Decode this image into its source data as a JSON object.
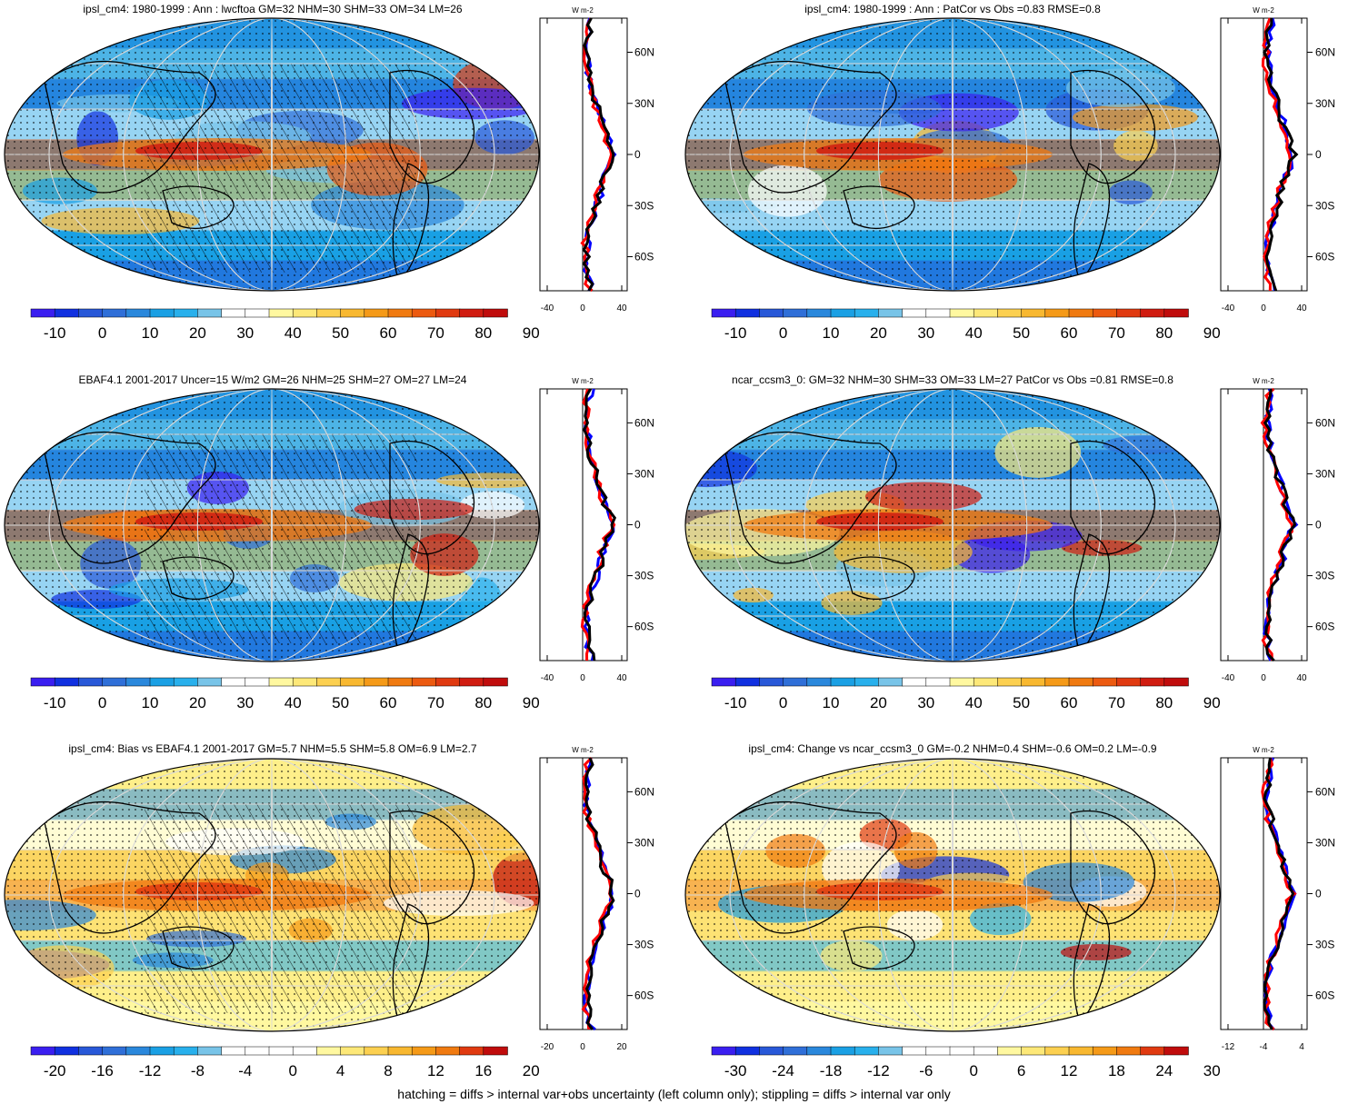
{
  "panels": [
    {
      "title": "ipsl_cm4: 1980-1999 : Ann : lwcftoa GM=32 NHM=30 SHM=33 OM=34 LM=26",
      "hatched": true,
      "colorbar": {
        "labels": [
          "-10",
          "0",
          "10",
          "20",
          "30",
          "40",
          "50",
          "60",
          "70",
          "80",
          "90"
        ],
        "palette": "sequential"
      },
      "profile": {
        "xticks": [
          "-40",
          "0",
          "40"
        ],
        "lat_labels": [
          "60N",
          "30N",
          "0",
          "30S",
          "60S"
        ],
        "unit": "W m-2"
      }
    },
    {
      "title": "ipsl_cm4: 1980-1999 : Ann : PatCor vs Obs =0.83 RMSE=0.8",
      "hatched": false,
      "colorbar": {
        "labels": [
          "-10",
          "0",
          "10",
          "20",
          "30",
          "40",
          "50",
          "60",
          "70",
          "80",
          "90"
        ],
        "palette": "sequential"
      },
      "profile": {
        "xticks": [
          "-40",
          "0",
          "40"
        ],
        "lat_labels": [
          "60N",
          "30N",
          "0",
          "30S",
          "60S"
        ],
        "unit": "W m-2"
      }
    },
    {
      "title": "EBAF4.1 2001-2017 Uncer=15 W/m2 GM=26 NHM=25 SHM=27 OM=27 LM=24",
      "hatched": true,
      "colorbar": {
        "labels": [
          "-10",
          "0",
          "10",
          "20",
          "30",
          "40",
          "50",
          "60",
          "70",
          "80",
          "90"
        ],
        "palette": "sequential"
      },
      "profile": {
        "xticks": [
          "-40",
          "0",
          "40"
        ],
        "lat_labels": [
          "60N",
          "30N",
          "0",
          "30S",
          "60S"
        ],
        "unit": "W m-2"
      }
    },
    {
      "title": "ncar_ccsm3_0: GM=32 NHM=30 SHM=33 OM=33 LM=27 PatCor vs Obs =0.81 RMSE=0.8",
      "hatched": false,
      "colorbar": {
        "labels": [
          "-10",
          "0",
          "10",
          "20",
          "30",
          "40",
          "50",
          "60",
          "70",
          "80",
          "90"
        ],
        "palette": "sequential"
      },
      "profile": {
        "xticks": [
          "-40",
          "0",
          "40"
        ],
        "lat_labels": [
          "60N",
          "30N",
          "0",
          "30S",
          "60S"
        ],
        "unit": "W m-2"
      }
    },
    {
      "title": "ipsl_cm4: Bias vs EBAF4.1 2001-2017 GM=5.7 NHM=5.5 SHM=5.8 OM=6.9 LM=2.7",
      "hatched": true,
      "colorbar": {
        "labels": [
          "-20",
          "-16",
          "-12",
          "-8",
          "-4",
          "0",
          "4",
          "8",
          "12",
          "16",
          "20"
        ],
        "palette": "diverging"
      },
      "profile": {
        "xticks": [
          "-20",
          "0",
          "20"
        ],
        "lat_labels": [
          "60N",
          "30N",
          "0",
          "30S",
          "60S"
        ],
        "unit": "W m-2"
      }
    },
    {
      "title": "ipsl_cm4: Change vs ncar_ccsm3_0 GM=-0.2 NHM=0.4 SHM=-0.6 OM=0.2 LM=-0.9",
      "hatched": false,
      "colorbar": {
        "labels": [
          "-30",
          "-24",
          "-18",
          "-12",
          "-6",
          "0",
          "6",
          "12",
          "18",
          "24",
          "30"
        ],
        "palette": "diverging"
      },
      "profile": {
        "xticks": [
          "-12",
          "-4",
          "4"
        ],
        "lat_labels": [
          "60N",
          "30N",
          "0",
          "30S",
          "60S"
        ],
        "unit": "W m-2"
      }
    }
  ],
  "footer": "hatching = diffs > internal var+obs uncertainty (left column only); stippling = diffs > internal var only",
  "colors": {
    "sequential": [
      "#3a1ef0",
      "#1030e0",
      "#2858d8",
      "#2f6fd8",
      "#2a88dc",
      "#1aa0e4",
      "#28b0ec",
      "#78c4e8",
      "#ffffff",
      "#ffffff",
      "#fff8a0",
      "#fde878",
      "#fcd050",
      "#f8b830",
      "#f59a18",
      "#f07a10",
      "#ec5a10",
      "#e03a10",
      "#d01c10",
      "#c00c0c"
    ],
    "diverging": [
      "#3a1ef0",
      "#1030e0",
      "#2858d8",
      "#2f6fd8",
      "#2a88dc",
      "#1aa0e4",
      "#28b0ec",
      "#78c4e8",
      "#ffffff",
      "#ffffff",
      "#ffffff",
      "#ffffff",
      "#fff8a0",
      "#fde878",
      "#fcd050",
      "#f8b830",
      "#f59a18",
      "#f07a10",
      "#e03a10",
      "#c00c0c"
    ],
    "profile_lines": {
      "model": "#ff0000",
      "obs": "#000000",
      "other": "#0000ff"
    }
  },
  "chart_data": [
    {
      "type": "heatmap",
      "title": "ipsl_cm4: 1980-1999 : Ann : lwcftoa GM=32 NHM=30 SHM=33 OM=34 LM=26",
      "colorbar_range": [
        -10,
        90
      ],
      "global_mean": 32,
      "nh_mean": 30,
      "sh_mean": 33,
      "ocean_mean": 34,
      "land_mean": 26,
      "profile": {
        "type": "line",
        "ylabels": [
          "60N",
          "30N",
          "0",
          "30S",
          "60S"
        ],
        "xlim": [
          -40,
          40
        ],
        "units": "W m-2"
      }
    },
    {
      "type": "heatmap",
      "title": "ipsl_cm4: 1980-1999 : Ann : PatCor vs Obs =0.83 RMSE=0.8",
      "colorbar_range": [
        -10,
        90
      ],
      "pattern_correlation": 0.83,
      "rmse": 0.8,
      "profile": {
        "type": "line",
        "ylabels": [
          "60N",
          "30N",
          "0",
          "30S",
          "60S"
        ],
        "xlim": [
          -40,
          40
        ],
        "units": "W m-2"
      }
    },
    {
      "type": "heatmap",
      "title": "EBAF4.1 2001-2017 Uncer=15 W/m2 GM=26 NHM=25 SHM=27 OM=27 LM=24",
      "colorbar_range": [
        -10,
        90
      ],
      "uncertainty": 15,
      "global_mean": 26,
      "nh_mean": 25,
      "sh_mean": 27,
      "ocean_mean": 27,
      "land_mean": 24,
      "profile": {
        "type": "line",
        "ylabels": [
          "60N",
          "30N",
          "0",
          "30S",
          "60S"
        ],
        "xlim": [
          -40,
          40
        ],
        "units": "W m-2"
      }
    },
    {
      "type": "heatmap",
      "title": "ncar_ccsm3_0: GM=32 NHM=30 SHM=33 OM=33 LM=27 PatCor vs Obs =0.81 RMSE=0.8",
      "colorbar_range": [
        -10,
        90
      ],
      "global_mean": 32,
      "nh_mean": 30,
      "sh_mean": 33,
      "ocean_mean": 33,
      "land_mean": 27,
      "pattern_correlation": 0.81,
      "rmse": 0.8,
      "profile": {
        "type": "line",
        "ylabels": [
          "60N",
          "30N",
          "0",
          "30S",
          "60S"
        ],
        "xlim": [
          -40,
          40
        ],
        "units": "W m-2"
      }
    },
    {
      "type": "heatmap",
      "title": "ipsl_cm4: Bias vs EBAF4.1 2001-2017 GM=5.7 NHM=5.5 SHM=5.8 OM=6.9 LM=2.7",
      "colorbar_range": [
        -20,
        20
      ],
      "global_mean": 5.7,
      "nh_mean": 5.5,
      "sh_mean": 5.8,
      "ocean_mean": 6.9,
      "land_mean": 2.7,
      "profile": {
        "type": "line",
        "ylabels": [
          "60N",
          "30N",
          "0",
          "30S",
          "60S"
        ],
        "xlim": [
          -20,
          20
        ],
        "units": "W m-2"
      }
    },
    {
      "type": "heatmap",
      "title": "ipsl_cm4: Change vs ncar_ccsm3_0 GM=-0.2 NHM=0.4 SHM=-0.6 OM=0.2 LM=-0.9",
      "colorbar_range": [
        -30,
        30
      ],
      "global_mean": -0.2,
      "nh_mean": 0.4,
      "sh_mean": -0.6,
      "ocean_mean": 0.2,
      "land_mean": -0.9,
      "profile": {
        "type": "line",
        "ylabels": [
          "60N",
          "30N",
          "0",
          "30S",
          "60S"
        ],
        "xlim": [
          -12,
          4
        ],
        "units": "W m-2"
      }
    }
  ]
}
